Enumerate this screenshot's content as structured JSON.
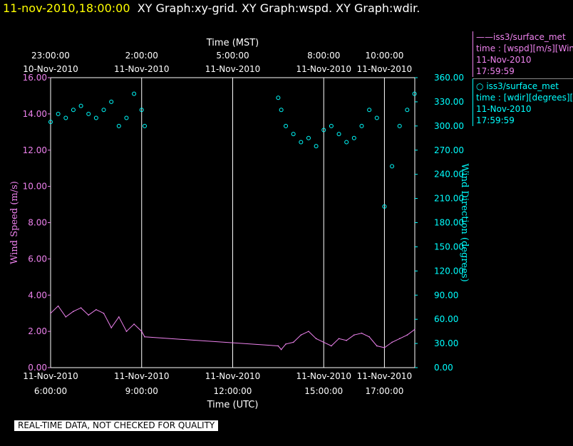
{
  "header": {
    "timestamp": "11-nov-2010,18:00:00",
    "graphs": "XY Graph:xy-grid.  XY Graph:wspd.  XY Graph:wdir."
  },
  "quality_notice": "REAL-TIME DATA, NOT CHECKED FOR QUALITY",
  "legend": [
    {
      "marker": "——",
      "name": "iss3/surface_met",
      "line1": "time : [wspd][m/s][Wind",
      "line2": "11-Nov-2010",
      "line3": "17:59:59"
    },
    {
      "marker": "○",
      "name": "iss3/surface_met",
      "line1": "time : [wdir][degrees][W",
      "line2": "11-Nov-2010",
      "line3": "17:59:59"
    }
  ],
  "colors": {
    "wspd": "#ee82ee",
    "wdir": "#00ffff",
    "grid": "#ffffff",
    "background": "#000000"
  },
  "chart_data": {
    "type": "line",
    "xlabel_bottom": "Time (UTC)",
    "xlabel_top": "Time (MST)",
    "ylabel_left": "Wind Speed (m/s)",
    "ylabel_right": "Wind Direction (degrees)",
    "xlim_utc_hours": [
      6,
      18
    ],
    "ylim_left": [
      0,
      16
    ],
    "ylim_right": [
      0,
      360
    ],
    "grid": true,
    "yticks_left": [
      "0.00",
      "2.00",
      "4.00",
      "6.00",
      "8.00",
      "10.00",
      "12.00",
      "14.00",
      "16.00"
    ],
    "yticks_right": [
      "0.00",
      "30.00",
      "60.00",
      "90.00",
      "120.00",
      "150.00",
      "180.00",
      "210.00",
      "240.00",
      "270.00",
      "300.00",
      "330.00",
      "360.00"
    ],
    "xticks_bottom": [
      {
        "x": 6,
        "date": "11-Nov-2010",
        "time": "6:00:00"
      },
      {
        "x": 9,
        "date": "11-Nov-2010",
        "time": "9:00:00"
      },
      {
        "x": 12,
        "date": "11-Nov-2010",
        "time": "12:00:00"
      },
      {
        "x": 15,
        "date": "11-Nov-2010",
        "time": "15:00:00"
      },
      {
        "x": 17,
        "date": "11-Nov-2010",
        "time": "17:00:00"
      }
    ],
    "xticks_top": [
      {
        "x": 6,
        "time": "23:00:00",
        "date": "10-Nov-2010"
      },
      {
        "x": 9,
        "time": "2:00:00",
        "date": "11-Nov-2010"
      },
      {
        "x": 12,
        "time": "5:00:00",
        "date": "11-Nov-2010"
      },
      {
        "x": 15,
        "time": "8:00:00",
        "date": "11-Nov-2010"
      },
      {
        "x": 17,
        "time": "10:00:00",
        "date": "11-Nov-2010"
      }
    ],
    "series": [
      {
        "name": "iss3/surface_met wspd",
        "unit": "m/s",
        "axis": "left",
        "style": "line",
        "x": [
          6.0,
          6.25,
          6.5,
          6.75,
          7.0,
          7.25,
          7.5,
          7.75,
          8.0,
          8.25,
          8.5,
          8.75,
          9.0,
          9.1,
          13.5,
          13.6,
          13.75,
          14.0,
          14.25,
          14.5,
          14.75,
          15.0,
          15.25,
          15.5,
          15.75,
          16.0,
          16.25,
          16.5,
          16.75,
          17.0,
          17.25,
          17.5,
          17.75,
          17.99
        ],
        "y": [
          3.0,
          3.4,
          2.8,
          3.1,
          3.3,
          2.9,
          3.2,
          3.0,
          2.2,
          2.8,
          2.0,
          2.4,
          2.0,
          1.7,
          1.2,
          1.0,
          1.3,
          1.4,
          1.8,
          2.0,
          1.6,
          1.4,
          1.2,
          1.6,
          1.5,
          1.8,
          1.9,
          1.7,
          1.2,
          1.1,
          1.4,
          1.6,
          1.8,
          2.1
        ]
      },
      {
        "name": "iss3/surface_met wdir",
        "unit": "degrees",
        "axis": "right",
        "style": "circles",
        "x": [
          6.0,
          6.25,
          6.5,
          6.75,
          7.0,
          7.25,
          7.5,
          7.75,
          8.0,
          8.25,
          8.5,
          8.75,
          9.0,
          9.1,
          13.5,
          13.6,
          13.75,
          14.0,
          14.25,
          14.5,
          14.75,
          15.0,
          15.25,
          15.5,
          15.75,
          16.0,
          16.25,
          16.5,
          16.75,
          17.0,
          17.25,
          17.5,
          17.75,
          17.99
        ],
        "y": [
          305,
          315,
          310,
          320,
          325,
          315,
          310,
          320,
          330,
          300,
          310,
          340,
          320,
          300,
          335,
          320,
          300,
          290,
          280,
          285,
          275,
          295,
          300,
          290,
          280,
          285,
          300,
          320,
          310,
          200,
          250,
          300,
          320,
          340
        ]
      }
    ]
  }
}
